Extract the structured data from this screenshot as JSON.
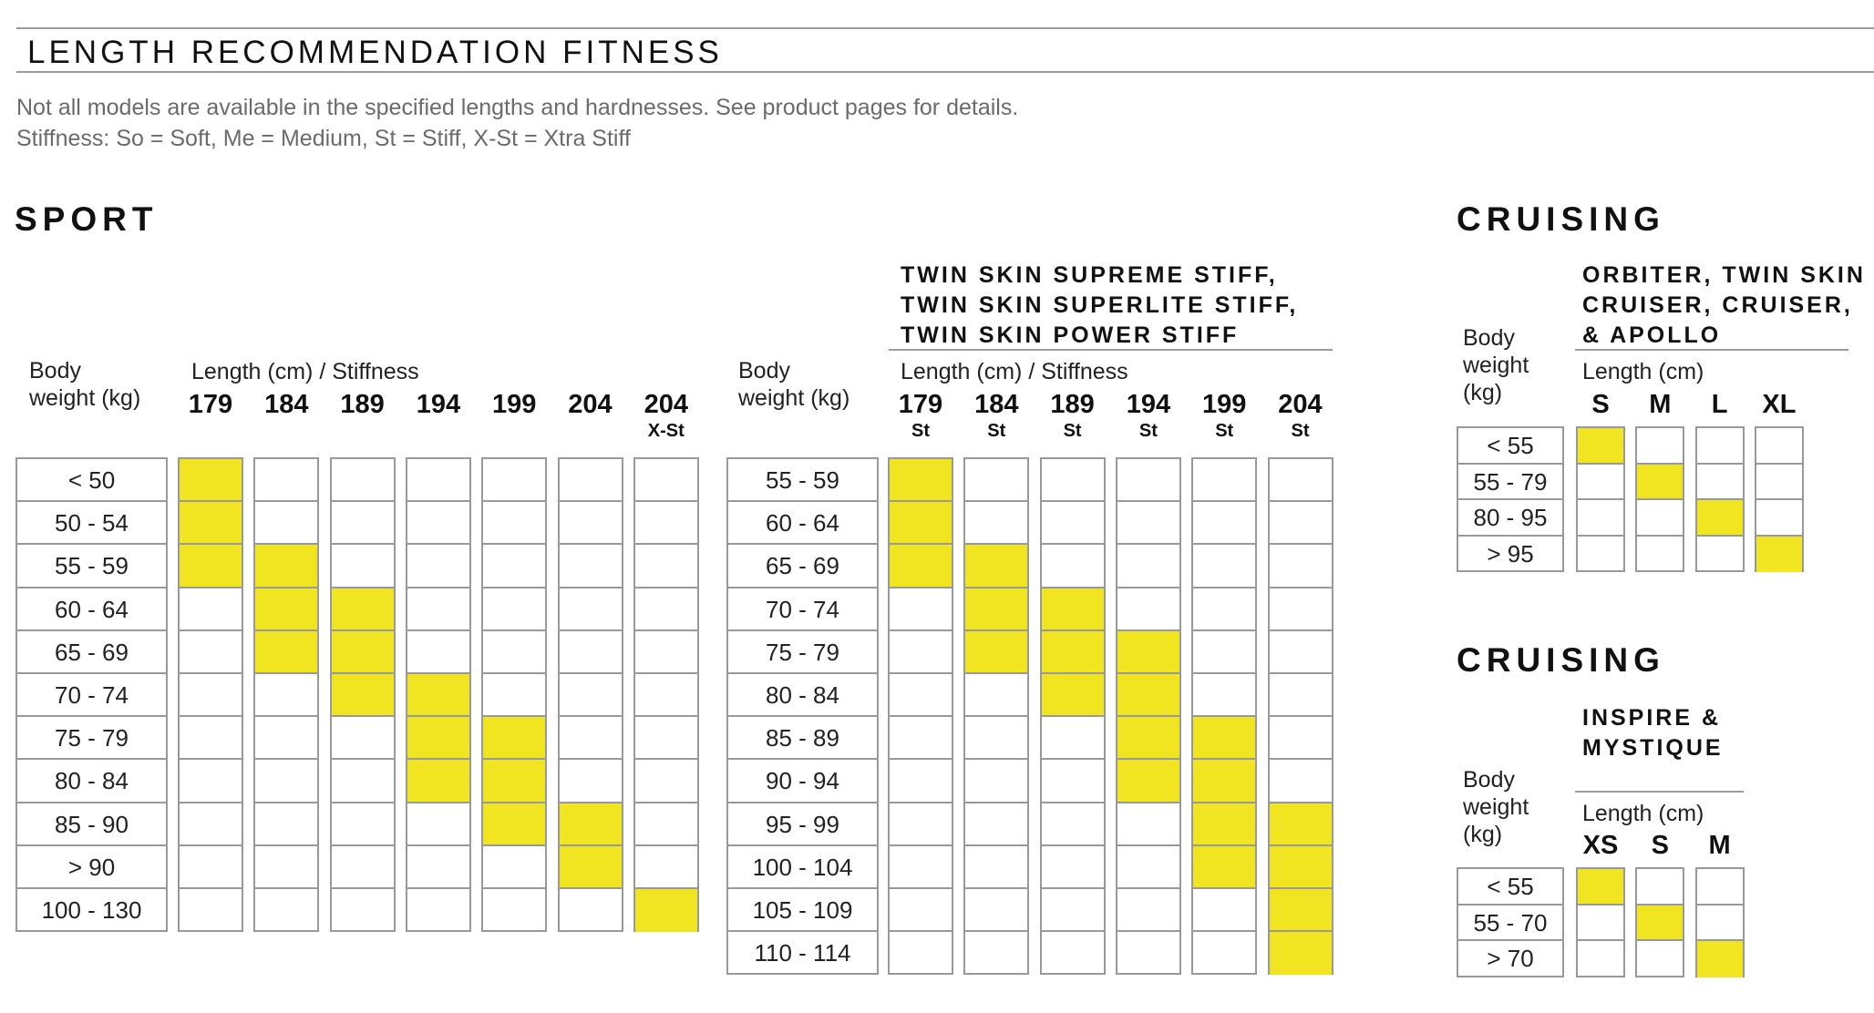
{
  "page": {
    "title": "LENGTH RECOMMENDATION FITNESS",
    "note1": "Not all models are available in the specified lengths and hardnesses. See product pages for details.",
    "note2": "Stiffness: So = Soft, Me = Medium, St = Stiff, X-St = Xtra Stiff"
  },
  "highlight_color": "#f0e520",
  "sport": {
    "section": "SPORT",
    "table1": {
      "weight_label": "Body\nweight (kg)",
      "length_label": "Length (cm) / Stiffness",
      "rows": [
        "< 50",
        "50 - 54",
        "55 - 59",
        "60 - 64",
        "65 - 69",
        "70 - 74",
        "75 - 79",
        "80 - 84",
        "85 - 90",
        "> 90",
        "100 - 130"
      ],
      "columns": [
        {
          "length": "179",
          "stiffness": "",
          "filled": [
            0,
            1,
            2
          ]
        },
        {
          "length": "184",
          "stiffness": "",
          "filled": [
            2,
            3,
            4
          ]
        },
        {
          "length": "189",
          "stiffness": "",
          "filled": [
            3,
            4,
            5
          ]
        },
        {
          "length": "194",
          "stiffness": "",
          "filled": [
            5,
            6,
            7
          ]
        },
        {
          "length": "199",
          "stiffness": "",
          "filled": [
            6,
            7,
            8
          ]
        },
        {
          "length": "204",
          "stiffness": "",
          "filled": [
            8,
            9
          ]
        },
        {
          "length": "204",
          "stiffness": "X-St",
          "filled": [
            10
          ]
        }
      ]
    },
    "table2": {
      "model": "TWIN SKIN SUPREME STIFF,\nTWIN SKIN SUPERLITE STIFF,\nTWIN SKIN POWER STIFF",
      "weight_label": "Body\nweight (kg)",
      "length_label": "Length (cm) / Stiffness",
      "rows": [
        "55 - 59",
        "60 - 64",
        "65 - 69",
        "70 - 74",
        "75 - 79",
        "80 - 84",
        "85 - 89",
        "90 - 94",
        "95 - 99",
        "100 - 104",
        "105 - 109",
        "110 - 114"
      ],
      "columns": [
        {
          "length": "179",
          "stiffness": "St",
          "filled": [
            0,
            1,
            2
          ]
        },
        {
          "length": "184",
          "stiffness": "St",
          "filled": [
            2,
            3,
            4
          ]
        },
        {
          "length": "189",
          "stiffness": "St",
          "filled": [
            3,
            4,
            5
          ]
        },
        {
          "length": "194",
          "stiffness": "St",
          "filled": [
            4,
            5,
            6,
            7
          ]
        },
        {
          "length": "199",
          "stiffness": "St",
          "filled": [
            6,
            7,
            8,
            9
          ]
        },
        {
          "length": "204",
          "stiffness": "St",
          "filled": [
            8,
            9,
            10,
            11
          ]
        }
      ]
    }
  },
  "cruising1": {
    "section": "CRUISING",
    "model": "ORBITER, TWIN SKIN\nCRUISER, CRUISER,\n& APOLLO",
    "weight_label": "Body\nweight\n(kg)",
    "length_label": "Length (cm)",
    "rows": [
      "< 55",
      "55 - 79",
      "80 - 95",
      "> 95"
    ],
    "columns": [
      {
        "length": "S",
        "filled": [
          0
        ]
      },
      {
        "length": "M",
        "filled": [
          1
        ]
      },
      {
        "length": "L",
        "filled": [
          2
        ]
      },
      {
        "length": "XL",
        "filled": [
          3
        ]
      }
    ]
  },
  "cruising2": {
    "section": "CRUISING",
    "model": "INSPIRE &\nMYSTIQUE",
    "weight_label": "Body\nweight\n(kg)",
    "length_label": "Length (cm)",
    "rows": [
      "< 55",
      "55 - 70",
      "> 70"
    ],
    "columns": [
      {
        "length": "XS",
        "filled": [
          0
        ]
      },
      {
        "length": "S",
        "filled": [
          1
        ]
      },
      {
        "length": "M",
        "filled": [
          2
        ]
      }
    ]
  }
}
